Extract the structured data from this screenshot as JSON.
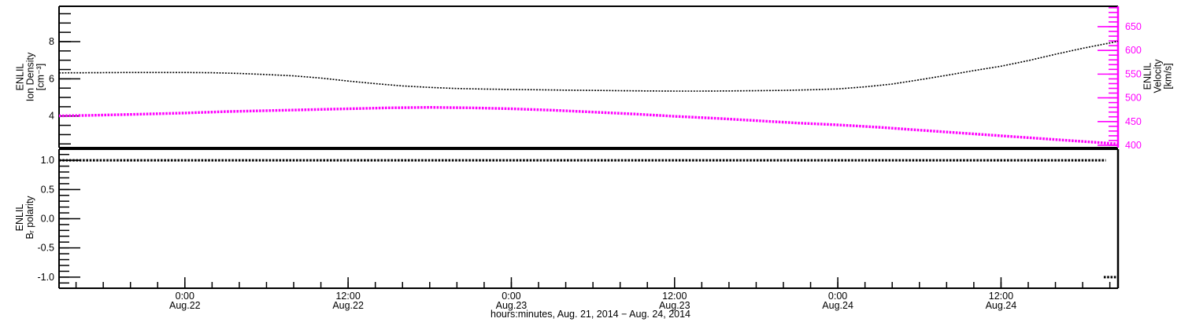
{
  "figure": {
    "background": "#ffffff",
    "axis_color": "#000000",
    "velocity_color": "#ff00ff"
  },
  "labels": {
    "ion_density_axis": "ENLIL\nIon Density\n[cm⁻³]",
    "velocity_axis": "ENLIL\nVelocity\n[km/s]",
    "br_polarity_axis": "ENLIL\nBᵣ polarity",
    "x_axis_title": "hours:minutes, Aug. 21, 2014 − Aug. 24, 2014"
  },
  "x_axis": {
    "title": "hours:minutes, Aug. 21, 2014 − Aug. 24, 2014",
    "units": "hours since Aug. 21, 2014 00:00",
    "range_hours": [
      14.75,
      92.6
    ],
    "minor_step_hours": 2,
    "major_ticks": [
      {
        "hour": 24,
        "time": "0:00",
        "date": "Aug.22"
      },
      {
        "hour": 36,
        "time": "12:00",
        "date": "Aug.22"
      },
      {
        "hour": 48,
        "time": "0:00",
        "date": "Aug.23"
      },
      {
        "hour": 60,
        "time": "12:00",
        "date": "Aug.23"
      },
      {
        "hour": 72,
        "time": "0:00",
        "date": "Aug.24"
      },
      {
        "hour": 84,
        "time": "12:00",
        "date": "Aug.24"
      }
    ]
  },
  "chart_data": [
    {
      "type": "line",
      "panel": "top",
      "y_left": {
        "label": "ENLIL Ion Density [cm⁻³]",
        "range": [
          2.3,
          9.9
        ],
        "minor_step": 0.5,
        "color": "#000000",
        "major_ticks": [
          {
            "v": 4,
            "label": "4"
          },
          {
            "v": 6,
            "label": "6"
          },
          {
            "v": 8,
            "label": "8"
          }
        ]
      },
      "y_right": {
        "label": "ENLIL Velocity [km/s]",
        "range": [
          395,
          693
        ],
        "minor_step": 10,
        "color": "#ff00ff",
        "major_ticks": [
          {
            "v": 400,
            "label": "400"
          },
          {
            "v": 450,
            "label": "450"
          },
          {
            "v": 500,
            "label": "500"
          },
          {
            "v": 550,
            "label": "550"
          },
          {
            "v": 600,
            "label": "600"
          },
          {
            "v": 650,
            "label": "650"
          }
        ]
      },
      "series": [
        {
          "name": "ion_density",
          "axis": "left",
          "color": "#000000",
          "style": "dotted",
          "width": 1.6,
          "dash": "2 1.7",
          "points": [
            [
              14.75,
              6.32
            ],
            [
              17,
              6.33
            ],
            [
              20,
              6.34
            ],
            [
              24,
              6.34
            ],
            [
              26,
              6.33
            ],
            [
              28,
              6.29
            ],
            [
              30,
              6.23
            ],
            [
              32,
              6.16
            ],
            [
              34,
              6.04
            ],
            [
              36,
              5.88
            ],
            [
              38,
              5.74
            ],
            [
              40,
              5.62
            ],
            [
              42,
              5.54
            ],
            [
              44,
              5.48
            ],
            [
              46,
              5.45
            ],
            [
              48,
              5.43
            ],
            [
              50,
              5.41
            ],
            [
              52,
              5.39
            ],
            [
              54,
              5.38
            ],
            [
              56,
              5.36
            ],
            [
              58,
              5.35
            ],
            [
              60,
              5.34
            ],
            [
              62,
              5.34
            ],
            [
              64,
              5.35
            ],
            [
              66,
              5.36
            ],
            [
              68,
              5.38
            ],
            [
              70,
              5.41
            ],
            [
              72,
              5.46
            ],
            [
              74,
              5.57
            ],
            [
              76,
              5.72
            ],
            [
              78,
              5.95
            ],
            [
              80,
              6.19
            ],
            [
              82,
              6.44
            ],
            [
              84,
              6.68
            ],
            [
              86,
              6.98
            ],
            [
              88,
              7.32
            ],
            [
              90,
              7.64
            ],
            [
              92,
              7.93
            ],
            [
              92.6,
              8.02
            ]
          ]
        },
        {
          "name": "velocity",
          "axis": "right",
          "color": "#ff00ff",
          "style": "dotted",
          "width": 3.4,
          "dash": "2.6 1.5",
          "points": [
            [
              14.75,
              462
            ],
            [
              17,
              463
            ],
            [
              20,
              465
            ],
            [
              24,
              468
            ],
            [
              27,
              471
            ],
            [
              30,
              473
            ],
            [
              33,
              475
            ],
            [
              36,
              477
            ],
            [
              39,
              479
            ],
            [
              42,
              480
            ],
            [
              45,
              479
            ],
            [
              48,
              477
            ],
            [
              51,
              474
            ],
            [
              54,
              470
            ],
            [
              57,
              466
            ],
            [
              60,
              461
            ],
            [
              63,
              457
            ],
            [
              66,
              452
            ],
            [
              69,
              447
            ],
            [
              72,
              443
            ],
            [
              75,
              438
            ],
            [
              78,
              432
            ],
            [
              81,
              426
            ],
            [
              84,
              420
            ],
            [
              87,
              414
            ],
            [
              90,
              408
            ],
            [
              92.6,
              403
            ]
          ]
        }
      ]
    },
    {
      "type": "line",
      "panel": "bottom",
      "y_left": {
        "label": "ENLIL Bᵣ polarity",
        "range": [
          -1.19,
          1.19
        ],
        "minor_step": 0.1,
        "color": "#000000",
        "major_ticks": [
          {
            "v": 1.0,
            "label": "1.0"
          },
          {
            "v": 0.5,
            "label": "0.5"
          },
          {
            "v": 0.0,
            "label": "0.0"
          },
          {
            "v": -0.5,
            "label": "-0.5"
          },
          {
            "v": -1.0,
            "label": "-1.0"
          }
        ]
      },
      "series": [
        {
          "name": "br_polarity_positive",
          "axis": "left",
          "color": "#000000",
          "style": "dotted",
          "width": 3,
          "dash": "2.6 1.7",
          "points": [
            [
              14.75,
              1.0
            ],
            [
              91.7,
              1.0
            ]
          ]
        },
        {
          "name": "br_polarity_negative",
          "axis": "left",
          "color": "#000000",
          "style": "dotted",
          "width": 3,
          "dash": "2.6 1.7",
          "points": [
            [
              91.55,
              -1.0
            ],
            [
              92.6,
              -1.0
            ]
          ]
        }
      ]
    }
  ]
}
